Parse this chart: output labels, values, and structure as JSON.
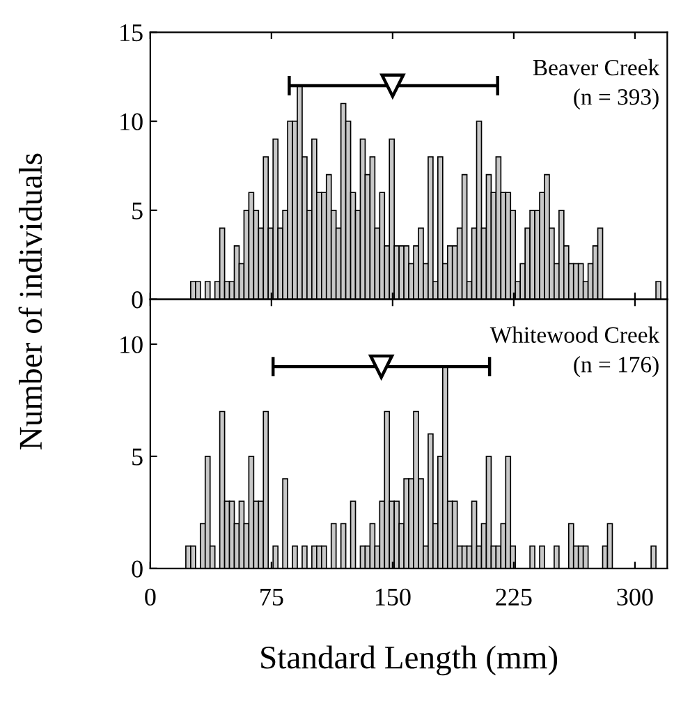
{
  "chart_data": [
    {
      "type": "histogram",
      "ylabel": "Number of individuals",
      "tick_labels": "y",
      "bins": [
        22,
        25,
        28,
        31,
        34,
        37,
        40,
        43,
        46,
        49,
        52,
        55,
        58,
        61,
        64,
        67,
        70,
        73,
        76,
        79,
        82,
        85,
        88,
        91,
        94,
        97,
        100,
        103,
        106,
        109,
        112,
        115,
        118,
        121,
        124,
        127,
        130,
        133,
        136,
        139,
        142,
        145,
        148,
        151,
        154,
        157,
        160,
        163,
        166,
        169,
        172,
        175,
        178,
        181,
        184,
        187,
        190,
        193,
        196,
        199,
        202,
        205,
        208,
        211,
        214,
        217,
        220,
        223,
        226,
        229,
        232,
        235,
        238,
        241,
        244,
        247,
        250,
        253,
        256,
        259,
        262,
        265,
        268,
        271,
        274,
        277,
        280,
        283,
        286,
        289,
        292,
        295,
        298,
        301,
        304,
        307,
        310,
        313,
        316,
        319
      ],
      "series": [
        {
          "color": "#c8c8c8",
          "values": [
            0,
            1,
            1,
            0,
            1,
            0,
            1,
            4,
            1,
            1,
            3,
            2,
            5,
            6,
            5,
            4,
            8,
            4,
            9,
            4,
            5,
            10,
            10,
            12,
            8,
            5,
            9,
            6,
            6,
            7,
            5,
            4,
            11,
            10,
            6,
            5,
            9,
            7,
            8,
            4,
            6,
            3,
            9,
            3,
            3,
            3,
            2,
            3,
            4,
            2,
            8,
            1,
            8,
            2,
            3,
            3,
            4,
            7,
            1,
            4,
            10,
            4,
            7,
            6,
            8,
            6,
            6,
            5,
            1,
            2,
            4,
            5,
            5,
            6,
            7,
            4,
            2,
            5,
            3,
            2,
            2,
            2,
            1,
            2,
            3,
            4,
            0,
            0,
            0,
            0,
            0,
            0,
            0,
            0,
            0,
            0,
            0,
            1,
            0
          ]
        },
        {
          "type": "scatter",
          "color": "#000000",
          "marker": "triangle",
          "x": [
            150
          ],
          "values": [
            12
          ],
          "xerrors": [
            [
              86,
              215
            ]
          ]
        }
      ],
      "xlim": [
        0,
        320
      ],
      "xticks": [
        0,
        75,
        150,
        225,
        300
      ],
      "ylim": [
        0,
        15
      ],
      "yticks": [
        0,
        5,
        10,
        15
      ],
      "annotations": [
        "Beaver Creek",
        "(n = 393)"
      ]
    },
    {
      "type": "histogram",
      "xlabel": "Standard Length (mm)",
      "bins": [
        22,
        25,
        28,
        31,
        34,
        37,
        40,
        43,
        46,
        49,
        52,
        55,
        58,
        61,
        64,
        67,
        70,
        73,
        76,
        79,
        82,
        85,
        88,
        91,
        94,
        97,
        100,
        103,
        106,
        109,
        112,
        115,
        118,
        121,
        124,
        127,
        130,
        133,
        136,
        139,
        142,
        145,
        148,
        151,
        154,
        157,
        160,
        163,
        166,
        169,
        172,
        175,
        178,
        181,
        184,
        187,
        190,
        193,
        196,
        199,
        202,
        205,
        208,
        211,
        214,
        217,
        220,
        223,
        226,
        229,
        232,
        235,
        238,
        241,
        244,
        247,
        250,
        253,
        256,
        259,
        262,
        265,
        268,
        271,
        274,
        277,
        280,
        283,
        286,
        289,
        292,
        295,
        298,
        301,
        304,
        307,
        310,
        313,
        316,
        319
      ],
      "series": [
        {
          "color": "#c8c8c8",
          "values": [
            1,
            1,
            0,
            2,
            5,
            1,
            0,
            7,
            3,
            3,
            2,
            3,
            2,
            5,
            3,
            3,
            7,
            0,
            1,
            0,
            4,
            0,
            1,
            0,
            1,
            0,
            1,
            1,
            1,
            0,
            2,
            0,
            2,
            0,
            3,
            0,
            1,
            1,
            2,
            1,
            3,
            7,
            3,
            3,
            2,
            4,
            4,
            7,
            4,
            1,
            6,
            2,
            5,
            9,
            3,
            3,
            1,
            1,
            1,
            3,
            1,
            2,
            5,
            1,
            1,
            2,
            5,
            1,
            0,
            0,
            0,
            1,
            0,
            1,
            0,
            0,
            1,
            0,
            0,
            2,
            1,
            1,
            1,
            0,
            0,
            0,
            1,
            2,
            0,
            0,
            0,
            0,
            0,
            0,
            0,
            0,
            1,
            0,
            0
          ]
        },
        {
          "type": "scatter",
          "color": "#000000",
          "marker": "triangle",
          "x": [
            143
          ],
          "values": [
            9
          ],
          "xerrors": [
            [
              76,
              210
            ]
          ]
        }
      ],
      "xlim": [
        0,
        320
      ],
      "xticks": [
        0,
        75,
        150,
        225,
        300
      ],
      "ylim": [
        0,
        12
      ],
      "yticks": [
        0,
        5,
        10
      ],
      "annotations": [
        "Whitewood Creek",
        "(n = 176)"
      ]
    }
  ]
}
